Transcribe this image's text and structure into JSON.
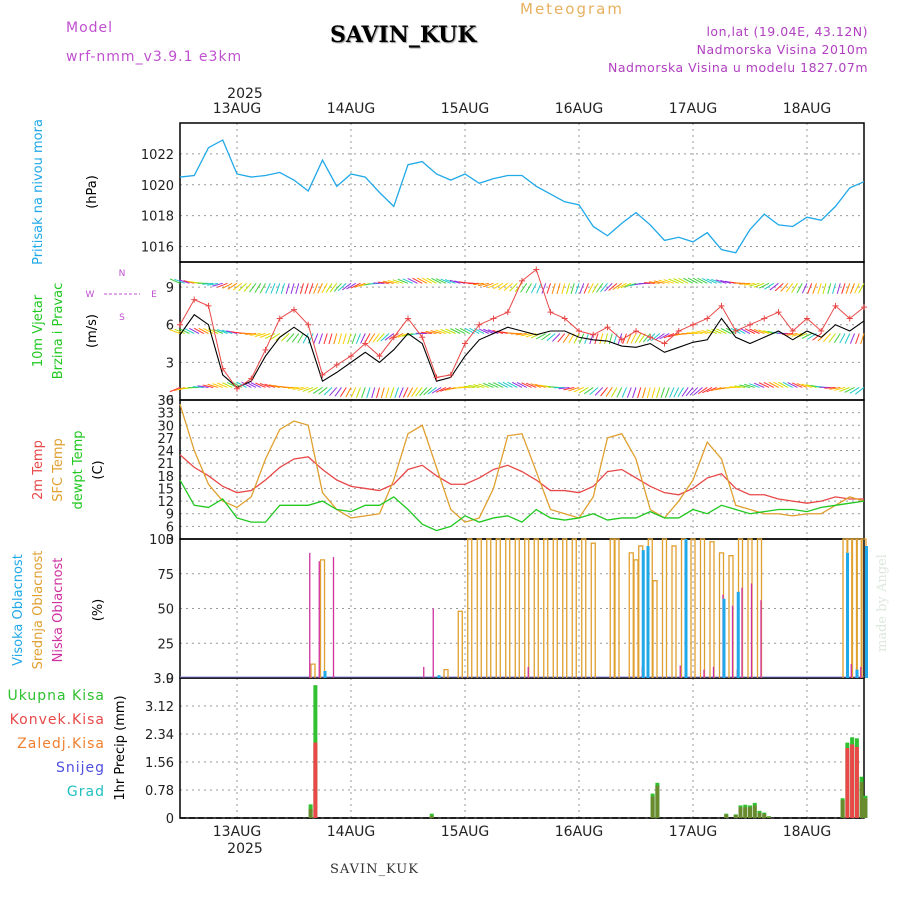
{
  "header": {
    "model_label": "Model",
    "model_version": "wrf-nmm_v3.9.1  e3km",
    "station": "SAVIN_KUK",
    "meteogram_label": "Meteogram",
    "lonlat": "lon,lat (19.04E, 43.12N)",
    "elevation": "Nadmorska Visina 2010m",
    "elevation_model": "Nadmorska Visina u modelu 1827.07m",
    "made_by": "made by Angel",
    "footer_station": "SAVIN_KUK"
  },
  "colors": {
    "pressure": "#20a8e8",
    "wind_label": "#20c820",
    "temp2m": "#e84848",
    "sfc_temp": "#e0a030",
    "dewpoint": "#20c820",
    "high_cloud": "#20a8e8",
    "mid_cloud": "#e0a030",
    "low_cloud": "#d030a0",
    "total_precip": "#30c030",
    "conv_precip": "#e84848",
    "frozen_precip": "#f08030",
    "snow": "#5050e0",
    "hail": "#20c0c0",
    "wind_dir_legend": "#c050d0"
  },
  "chart_data": [
    {
      "id": "pressure",
      "type": "line",
      "ylabel_lines": [
        "Pritisak na nivou mora",
        "(hPa)"
      ],
      "ylim": [
        1015,
        1024
      ],
      "yticks": [
        1016,
        1018,
        1020,
        1022
      ],
      "x": [
        0,
        3,
        6,
        9,
        12,
        15,
        18,
        21,
        24,
        27,
        30,
        33,
        36,
        39,
        42,
        45,
        48,
        51,
        54,
        57,
        60,
        63,
        66,
        69,
        72,
        75,
        78,
        81,
        84,
        87,
        90,
        93,
        96,
        99,
        102,
        105,
        108,
        111,
        114,
        117,
        120,
        123,
        126,
        129,
        132,
        135,
        138,
        141,
        144
      ],
      "series": [
        {
          "name": "SLP",
          "values": [
            1020.5,
            1020.6,
            1022.4,
            1022.9,
            1020.7,
            1020.5,
            1020.6,
            1020.8,
            1020.3,
            1019.6,
            1021.6,
            1019.9,
            1020.7,
            1020.5,
            1019.5,
            1018.6,
            1021.3,
            1021.5,
            1020.7,
            1020.3,
            1020.7,
            1020.1,
            1020.4,
            1020.6,
            1020.6,
            1019.9,
            1019.4,
            1018.9,
            1018.7,
            1017.3,
            1016.7,
            1017.5,
            1018.2,
            1017.4,
            1016.4,
            1016.6,
            1016.3,
            1016.9,
            1015.8,
            1015.6,
            1017.1,
            1018.1,
            1017.4,
            1017.3,
            1017.9,
            1017.7,
            1018.6,
            1019.8,
            1020.2
          ]
        }
      ]
    },
    {
      "id": "wind",
      "type": "line",
      "ylabel_lines": [
        "10m Vjetar",
        "Brzina i Pravac",
        "(m/s)"
      ],
      "ylim": [
        0,
        11
      ],
      "yticks": [
        0,
        3,
        6,
        9
      ],
      "legend_dirs": {
        "north": "N",
        "west": "W",
        "east": "E",
        "south": "S"
      },
      "x": [
        0,
        3,
        6,
        9,
        12,
        15,
        18,
        21,
        24,
        27,
        30,
        33,
        36,
        39,
        42,
        45,
        48,
        51,
        54,
        57,
        60,
        63,
        66,
        69,
        72,
        75,
        78,
        81,
        84,
        87,
        90,
        93,
        96,
        99,
        102,
        105,
        108,
        111,
        114,
        117,
        120,
        123,
        126,
        129,
        132,
        135,
        138,
        141,
        144
      ],
      "series": [
        {
          "name": "wind speed",
          "values": [
            5.2,
            6.8,
            6.0,
            2.0,
            1.0,
            1.5,
            3.5,
            5.0,
            5.8,
            5.0,
            1.5,
            2.2,
            3.0,
            3.8,
            3.0,
            4.0,
            5.3,
            4.5,
            1.5,
            1.8,
            3.5,
            4.8,
            5.3,
            5.8,
            5.5,
            5.2,
            5.5,
            5.5,
            5.0,
            4.8,
            4.7,
            4.3,
            4.2,
            4.5,
            3.8,
            4.2,
            4.6,
            4.8,
            6.5,
            5.0,
            4.5,
            5.0,
            5.5,
            4.8,
            5.5,
            5.0,
            6.0,
            5.5,
            6.3
          ]
        },
        {
          "name": "wind gust",
          "values": [
            6.0,
            8.0,
            7.5,
            2.5,
            0.9,
            1.7,
            4.0,
            6.5,
            7.2,
            6.0,
            2.0,
            2.8,
            3.5,
            4.5,
            3.5,
            5.0,
            6.5,
            5.0,
            1.8,
            2.0,
            4.5,
            6.0,
            6.5,
            7.0,
            9.5,
            10.4,
            7.0,
            6.5,
            5.5,
            5.2,
            5.8,
            4.8,
            5.5,
            5.0,
            4.5,
            5.5,
            6.0,
            6.5,
            7.5,
            5.5,
            6.0,
            6.5,
            7.0,
            5.5,
            6.5,
            5.5,
            7.5,
            6.5,
            7.4
          ]
        }
      ]
    },
    {
      "id": "temperature",
      "type": "line",
      "ylabel_lines": [
        "2m Temp",
        "SFC Temp",
        "dewpt Temp",
        "(C)"
      ],
      "ylim": [
        3,
        36
      ],
      "yticks": [
        3,
        6,
        9,
        12,
        15,
        18,
        21,
        24,
        27,
        30,
        33,
        36
      ],
      "x": [
        0,
        3,
        6,
        9,
        12,
        15,
        18,
        21,
        24,
        27,
        30,
        33,
        36,
        39,
        42,
        45,
        48,
        51,
        54,
        57,
        60,
        63,
        66,
        69,
        72,
        75,
        78,
        81,
        84,
        87,
        90,
        93,
        96,
        99,
        102,
        105,
        108,
        111,
        114,
        117,
        120,
        123,
        126,
        129,
        132,
        135,
        138,
        141,
        144
      ],
      "series": [
        {
          "name": "2m Temp",
          "values": [
            23,
            20,
            18,
            15.5,
            14,
            14.5,
            17,
            20,
            22,
            22.5,
            19.5,
            17,
            15.5,
            15,
            14.5,
            16,
            19.5,
            20.5,
            18,
            16,
            16,
            17.5,
            19.5,
            20.5,
            19,
            17,
            14.5,
            14.5,
            14,
            15.5,
            19,
            19.5,
            17.5,
            15.5,
            14,
            13.5,
            15,
            17.5,
            18.5,
            15,
            13.5,
            13.5,
            12.5,
            12,
            11.5,
            12,
            13,
            12.5,
            12.5
          ]
        },
        {
          "name": "SFC Temp",
          "values": [
            35,
            24,
            16,
            12,
            10.5,
            13,
            22,
            29,
            31,
            30,
            14,
            10,
            8,
            8.5,
            9,
            17,
            28,
            30,
            20,
            10,
            7,
            8,
            15,
            27.5,
            28,
            19,
            10,
            9,
            8,
            13,
            27,
            28,
            22,
            10,
            8,
            12,
            17,
            26,
            22,
            11,
            10,
            9,
            9,
            8.5,
            9,
            9,
            11,
            13,
            12
          ]
        },
        {
          "name": "dewpt Temp",
          "values": [
            17,
            11,
            10.5,
            12.5,
            8,
            7,
            7,
            11,
            11,
            11,
            12,
            10,
            9.5,
            11,
            11,
            13,
            10,
            6.5,
            5,
            6,
            8.5,
            7,
            8,
            8.5,
            7,
            10,
            8,
            7.5,
            8,
            9,
            7.5,
            8,
            8,
            9.5,
            8,
            8,
            10,
            9,
            11,
            10,
            9,
            9.5,
            10,
            10,
            9.5,
            10.5,
            11,
            11.5,
            12
          ]
        }
      ]
    },
    {
      "id": "clouds",
      "type": "bar",
      "ylabel_lines": [
        "Visoka Oblacnost",
        "Srednja Oblacnost",
        "Niska Oblacnost",
        "(%)"
      ],
      "ylim": [
        0,
        100
      ],
      "yticks": [
        0,
        25,
        50,
        75,
        100
      ],
      "series": [
        {
          "name": "Srednja Oblacnost",
          "x": [
            28,
            30,
            56,
            59,
            61,
            63,
            65,
            67,
            69,
            71,
            73,
            75,
            77,
            79,
            81,
            83,
            85,
            87,
            91,
            92,
            95,
            96,
            97,
            99,
            100,
            102,
            104,
            106,
            108,
            110,
            112,
            114,
            116,
            118,
            120,
            122,
            140,
            141,
            142,
            143,
            144
          ],
          "values": [
            10,
            85,
            6,
            48,
            100,
            100,
            100,
            100,
            100,
            100,
            100,
            100,
            100,
            100,
            100,
            100,
            100,
            97,
            100,
            100,
            90,
            85,
            95,
            100,
            70,
            100,
            95,
            100,
            100,
            100,
            98,
            90,
            88,
            100,
            100,
            100,
            100,
            100,
            100,
            100,
            100
          ]
        },
        {
          "name": "Niska Oblacnost",
          "x": [
            27,
            29,
            32,
            51,
            53,
            73,
            97,
            105,
            110,
            112,
            114,
            116,
            117,
            118,
            120,
            122,
            141,
            143
          ],
          "values": [
            90,
            84,
            87,
            8,
            50,
            8,
            8,
            9,
            6,
            8,
            60,
            52,
            6,
            65,
            68,
            56,
            10,
            8
          ]
        },
        {
          "name": "Visoka Oblacnost",
          "x": [
            30,
            54,
            97,
            98,
            106,
            114,
            117,
            140,
            142,
            144
          ],
          "values": [
            5,
            2,
            92,
            95,
            100,
            57,
            62,
            90,
            6,
            95
          ]
        }
      ]
    },
    {
      "id": "precip",
      "type": "bar",
      "ylabel_lines": [
        "1hr Precip (mm)"
      ],
      "legend": [
        "Ukupna Kisa",
        "Konvek.Kisa",
        "Zaledj.Kisa",
        "Snijeg",
        "Grad"
      ],
      "ylim": [
        0,
        3.9
      ],
      "yticks": [
        "0",
        "0.78",
        "1.56",
        "2.34",
        "3.12",
        "3.9"
      ],
      "x": [
        27.5,
        28.5,
        53,
        99.5,
        100.5,
        115,
        117,
        118,
        119,
        120,
        121,
        122,
        123,
        124,
        139.5,
        140.5,
        141.5,
        142.5,
        143.5,
        144.3
      ],
      "series": [
        {
          "name": "Ukupna Kisa",
          "values": [
            0.38,
            3.7,
            0.12,
            0.68,
            0.98,
            0.12,
            0.1,
            0.35,
            0.37,
            0.35,
            0.42,
            0.2,
            0.15,
            0.05,
            0.55,
            2.1,
            2.25,
            2.22,
            1.15,
            0.62
          ]
        },
        {
          "name": "Konvek.Kisa",
          "values": [
            0.25,
            2.1,
            0.06,
            0.6,
            0.9,
            0.1,
            0.08,
            0.3,
            0.3,
            0.3,
            0.35,
            0.15,
            0.12,
            0.04,
            0.5,
            1.95,
            2.05,
            1.98,
            1.0,
            0.55
          ]
        }
      ]
    }
  ],
  "axis": {
    "year": "2025",
    "days": [
      "13AUG",
      "14AUG",
      "15AUG",
      "16AUG",
      "17AUG",
      "18AUG"
    ],
    "day_hours": [
      12,
      36,
      60,
      84,
      108,
      132
    ]
  }
}
